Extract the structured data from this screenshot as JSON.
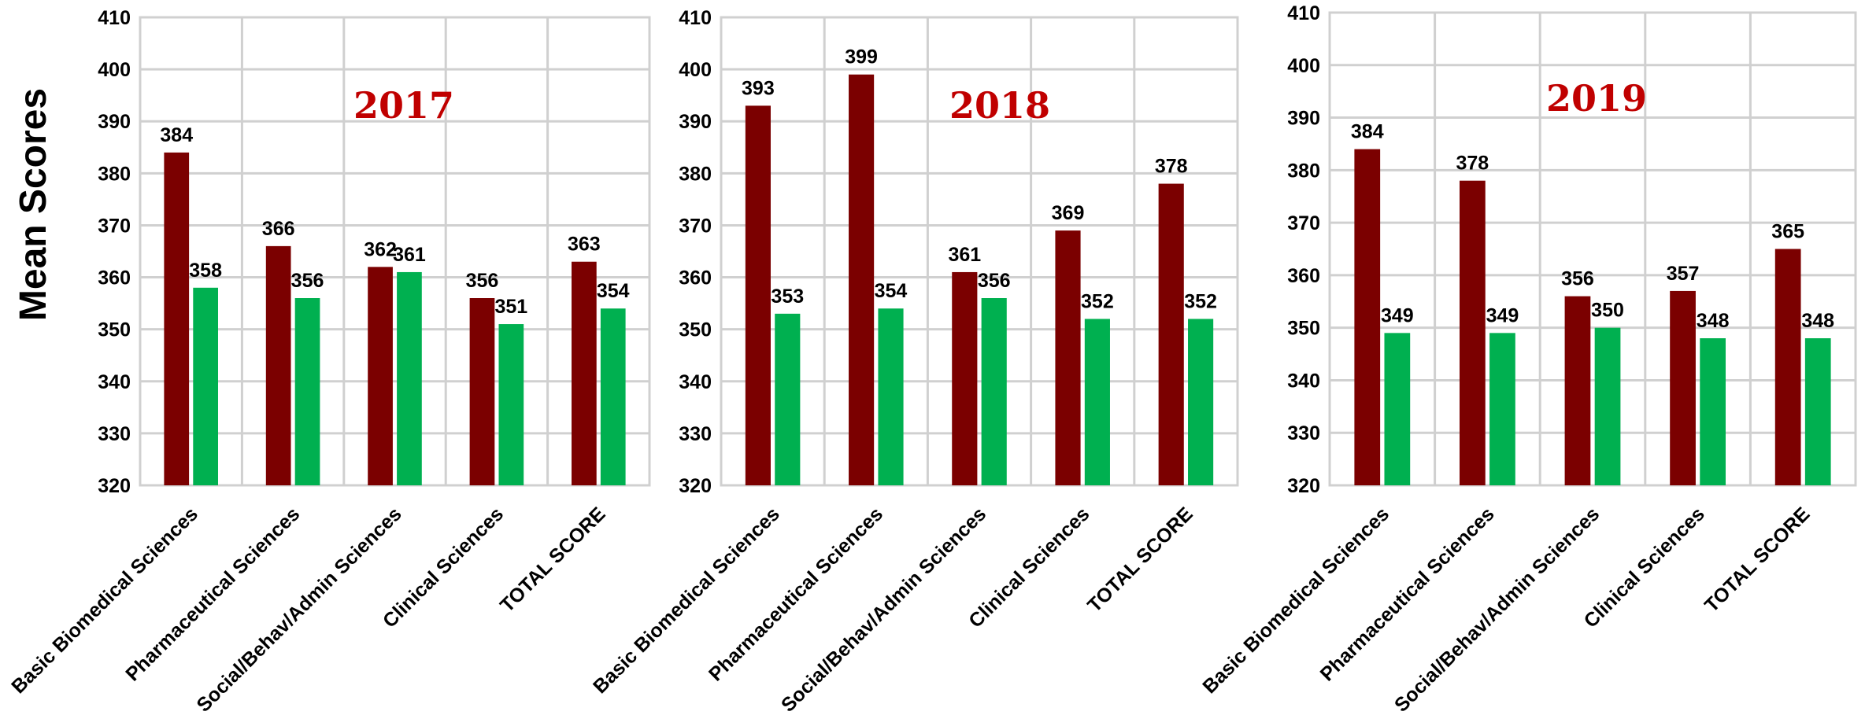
{
  "y_axis_label": "Mean Scores",
  "colors": {
    "series_a": "#7B0000",
    "series_b": "#00B050",
    "year_title": "#C00000",
    "grid": "#D0D0D0"
  },
  "chart_data": [
    {
      "type": "bar",
      "title": "2017",
      "categories": [
        "Basic Biomedical Sciences",
        "Pharmaceutical Sciences",
        "Social/Behav/Admin Sciences",
        "Clinical Sciences",
        "TOTAL SCORE"
      ],
      "series": [
        {
          "values": [
            384,
            366,
            362,
            356,
            363
          ]
        },
        {
          "values": [
            358,
            356,
            361,
            351,
            354
          ]
        }
      ],
      "ylim": [
        320,
        410
      ],
      "yticks": [
        320,
        330,
        340,
        350,
        360,
        370,
        380,
        390,
        400,
        410
      ],
      "grid": true
    },
    {
      "type": "bar",
      "title": "2018",
      "categories": [
        "Basic Biomedical Sciences",
        "Pharmaceutical Sciences",
        "Social/Behav/Admin Sciences",
        "Clinical Sciences",
        "TOTAL SCORE"
      ],
      "series": [
        {
          "values": [
            393,
            399,
            361,
            369,
            378
          ]
        },
        {
          "values": [
            353,
            354,
            356,
            352,
            352
          ]
        }
      ],
      "ylim": [
        320,
        410
      ],
      "yticks": [
        320,
        330,
        340,
        350,
        360,
        370,
        380,
        390,
        400,
        410
      ],
      "grid": true
    },
    {
      "type": "bar",
      "title": "2019",
      "categories": [
        "Basic Biomedical Sciences",
        "Pharmaceutical Sciences",
        "Social/Behav/Admin Sciences",
        "Clinical Sciences",
        "TOTAL SCORE"
      ],
      "series": [
        {
          "values": [
            384,
            378,
            356,
            357,
            365
          ]
        },
        {
          "values": [
            349,
            349,
            350,
            348,
            348
          ]
        }
      ],
      "ylim": [
        320,
        410
      ],
      "yticks": [
        320,
        330,
        340,
        350,
        360,
        370,
        380,
        390,
        400,
        410
      ],
      "grid": true
    }
  ]
}
